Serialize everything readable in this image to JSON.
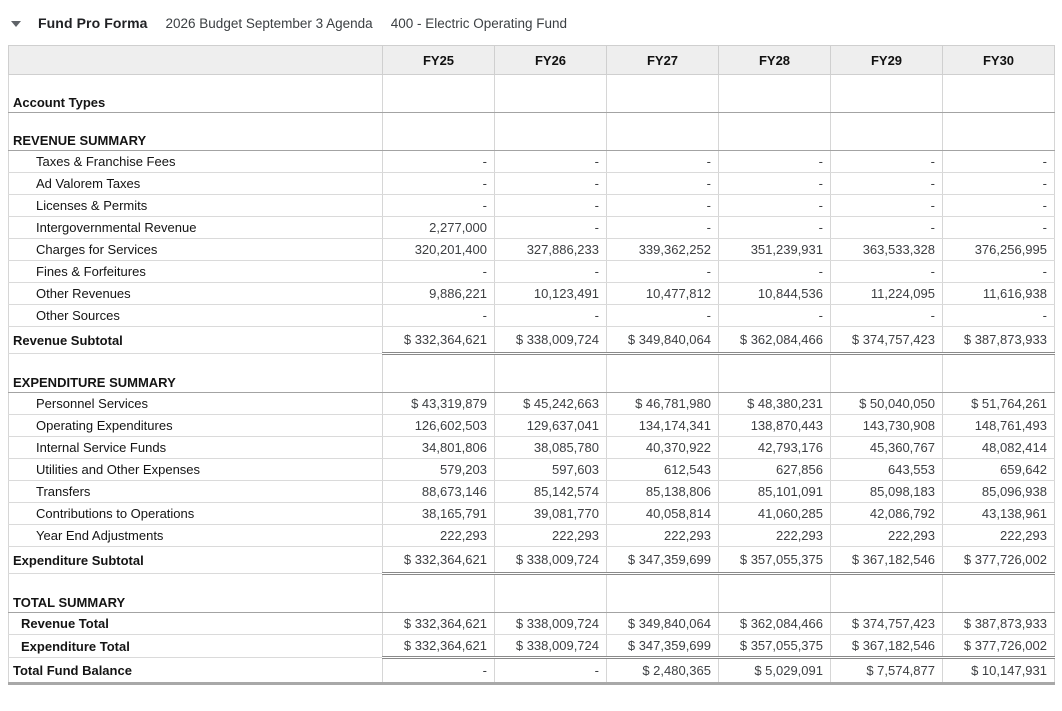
{
  "header": {
    "title": "Fund Pro Forma",
    "subtitle_budget": "2026 Budget September 3 Agenda",
    "subtitle_fund": "400 - Electric Operating Fund"
  },
  "icons": {
    "collapse": "triangle-down"
  },
  "colors": {
    "header_bg": "#eeeeee",
    "grid_line": "#d6d6d6",
    "heavy_line": "#8a8a8a",
    "section_line": "#a3a3a3"
  },
  "table": {
    "columns": [
      "FY25",
      "FY26",
      "FY27",
      "FY28",
      "FY29",
      "FY30"
    ],
    "rows": [
      {
        "label": "Account Types",
        "type": "section",
        "values": [
          "",
          "",
          "",
          "",
          "",
          ""
        ]
      },
      {
        "label": "REVENUE SUMMARY",
        "type": "section",
        "values": [
          "",
          "",
          "",
          "",
          "",
          ""
        ]
      },
      {
        "label": "Taxes & Franchise Fees",
        "type": "data",
        "values": [
          "-",
          "-",
          "-",
          "-",
          "-",
          "-"
        ]
      },
      {
        "label": "Ad Valorem Taxes",
        "type": "data",
        "values": [
          "-",
          "-",
          "-",
          "-",
          "-",
          "-"
        ]
      },
      {
        "label": "Licenses & Permits",
        "type": "data",
        "values": [
          "-",
          "-",
          "-",
          "-",
          "-",
          "-"
        ]
      },
      {
        "label": "Intergovernmental Revenue",
        "type": "data",
        "values": [
          "2,277,000",
          "-",
          "-",
          "-",
          "-",
          "-"
        ]
      },
      {
        "label": "Charges for Services",
        "type": "data",
        "values": [
          "320,201,400",
          "327,886,233",
          "339,362,252",
          "351,239,931",
          "363,533,328",
          "376,256,995"
        ]
      },
      {
        "label": "Fines & Forfeitures",
        "type": "data",
        "values": [
          "-",
          "-",
          "-",
          "-",
          "-",
          "-"
        ]
      },
      {
        "label": "Other Revenues",
        "type": "data",
        "values": [
          "9,886,221",
          "10,123,491",
          "10,477,812",
          "10,844,536",
          "11,224,095",
          "11,616,938"
        ]
      },
      {
        "label": "Other Sources",
        "type": "data",
        "values": [
          "-",
          "-",
          "-",
          "-",
          "-",
          "-"
        ]
      },
      {
        "label": "Revenue Subtotal",
        "type": "subtotal",
        "values": [
          "$ 332,364,621",
          "$ 338,009,724",
          "$ 349,840,064",
          "$ 362,084,466",
          "$ 374,757,423",
          "$ 387,873,933"
        ]
      },
      {
        "label": "EXPENDITURE SUMMARY",
        "type": "section",
        "values": [
          "",
          "",
          "",
          "",
          "",
          ""
        ]
      },
      {
        "label": "Personnel Services",
        "type": "data",
        "values": [
          "$ 43,319,879",
          "$ 45,242,663",
          "$ 46,781,980",
          "$ 48,380,231",
          "$ 50,040,050",
          "$ 51,764,261"
        ]
      },
      {
        "label": "Operating Expenditures",
        "type": "data",
        "values": [
          "126,602,503",
          "129,637,041",
          "134,174,341",
          "138,870,443",
          "143,730,908",
          "148,761,493"
        ]
      },
      {
        "label": "Internal Service Funds",
        "type": "data",
        "values": [
          "34,801,806",
          "38,085,780",
          "40,370,922",
          "42,793,176",
          "45,360,767",
          "48,082,414"
        ]
      },
      {
        "label": "Utilities and Other Expenses",
        "type": "data",
        "values": [
          "579,203",
          "597,603",
          "612,543",
          "627,856",
          "643,553",
          "659,642"
        ]
      },
      {
        "label": "Transfers",
        "type": "data",
        "values": [
          "88,673,146",
          "85,142,574",
          "85,138,806",
          "85,101,091",
          "85,098,183",
          "85,096,938"
        ]
      },
      {
        "label": "Contributions to Operations",
        "type": "data",
        "values": [
          "38,165,791",
          "39,081,770",
          "40,058,814",
          "41,060,285",
          "42,086,792",
          "43,138,961"
        ]
      },
      {
        "label": "Year End Adjustments",
        "type": "data",
        "values": [
          "222,293",
          "222,293",
          "222,293",
          "222,293",
          "222,293",
          "222,293"
        ]
      },
      {
        "label": "Expenditure Subtotal",
        "type": "subtotal",
        "values": [
          "$ 332,364,621",
          "$ 338,009,724",
          "$ 347,359,699",
          "$ 357,055,375",
          "$ 367,182,546",
          "$ 377,726,002"
        ]
      },
      {
        "label": "TOTAL SUMMARY",
        "type": "section",
        "values": [
          "",
          "",
          "",
          "",
          "",
          ""
        ]
      },
      {
        "label": "Revenue Total",
        "type": "total",
        "values": [
          "$ 332,364,621",
          "$ 338,009,724",
          "$ 349,840,064",
          "$ 362,084,466",
          "$ 374,757,423",
          "$ 387,873,933"
        ]
      },
      {
        "label": "Expenditure Total",
        "type": "total_last",
        "values": [
          "$ 332,364,621",
          "$ 338,009,724",
          "$ 347,359,699",
          "$ 357,055,375",
          "$ 367,182,546",
          "$ 377,726,002"
        ]
      },
      {
        "label": "Total Fund Balance",
        "type": "grand",
        "values": [
          "-",
          "-",
          "$ 2,480,365",
          "$ 5,029,091",
          "$ 7,574,877",
          "$ 10,147,931"
        ]
      }
    ]
  }
}
